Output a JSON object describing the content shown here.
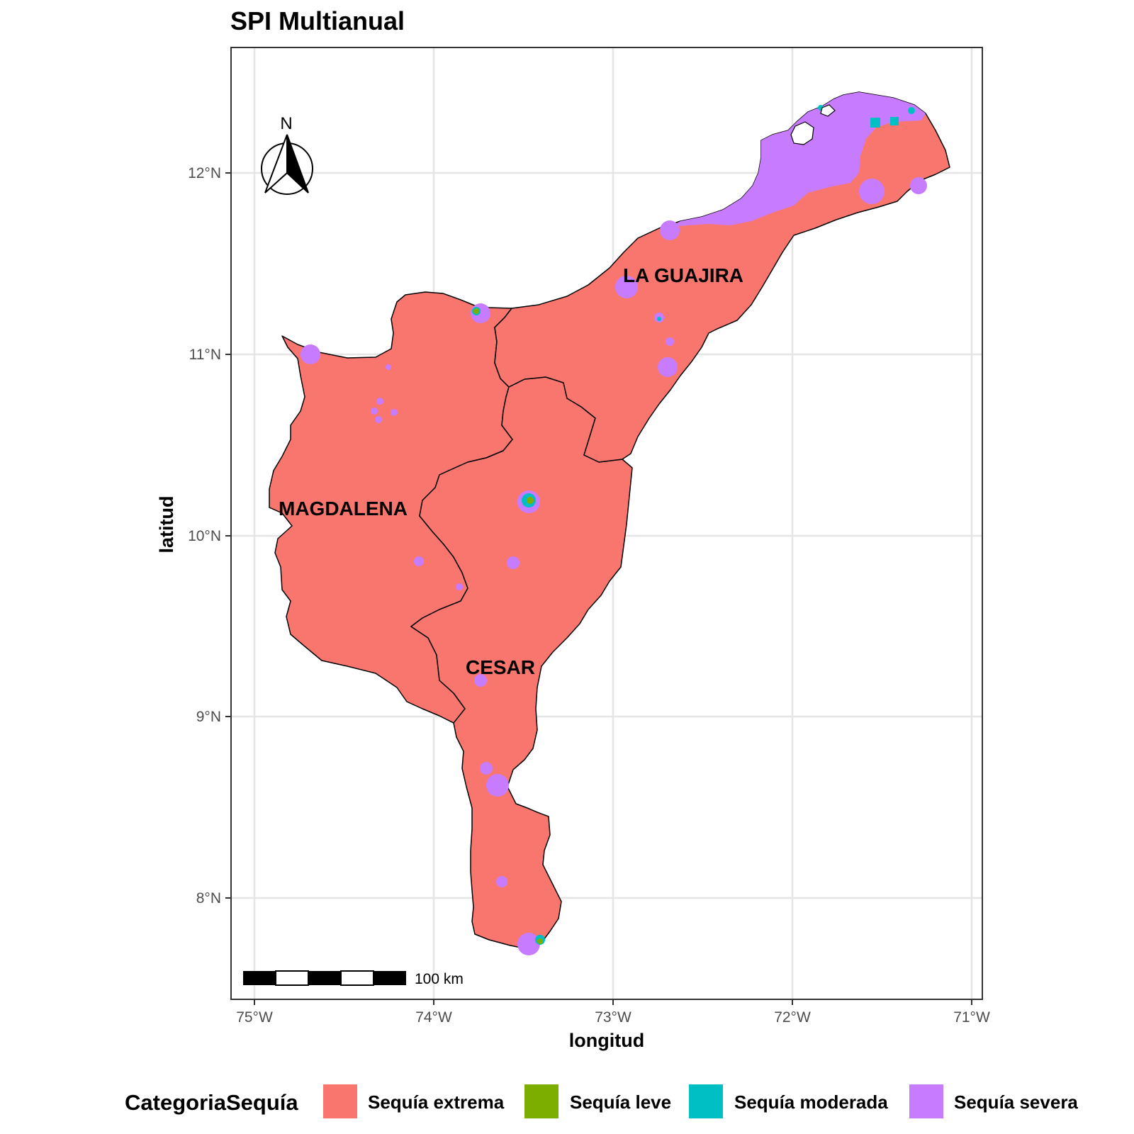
{
  "title": "SPI Multianual",
  "xlabel": "longitud",
  "ylabel": "latitud",
  "x_ticks": [
    "75°W",
    "74°W",
    "73°W",
    "72°W",
    "71°W"
  ],
  "y_ticks": [
    "12°N",
    "11°N",
    "10°N",
    "9°N",
    "8°N"
  ],
  "regions": [
    "LA GUAJIRA",
    "MAGDALENA",
    "CESAR"
  ],
  "north_arrow": {
    "letter": "N",
    "icon": "north-arrow-icon"
  },
  "scale_bar": {
    "label": "100 km"
  },
  "legend": {
    "title": "CategoriaSequía",
    "placement": "bottom",
    "items": [
      {
        "label": "Sequía extrema",
        "color": "#f8766d"
      },
      {
        "label": "Sequía leve",
        "color": "#7cae00"
      },
      {
        "label": "Sequía moderada",
        "color": "#00bfc4"
      },
      {
        "label": "Sequía severa",
        "color": "#c77cff"
      }
    ]
  },
  "chart_data": {
    "type": "map",
    "title": "SPI Multianual",
    "xlabel": "longitud",
    "ylabel": "latitud",
    "xlim": [
      -75.1,
      -70.9
    ],
    "ylim": [
      7.55,
      12.7
    ],
    "grid": true,
    "categories": [
      "Sequía extrema",
      "Sequía leve",
      "Sequía moderada",
      "Sequía severa"
    ],
    "dominant_category": "Sequía extrema",
    "regions": [
      "LA GUAJIRA",
      "MAGDALENA",
      "CESAR"
    ]
  }
}
